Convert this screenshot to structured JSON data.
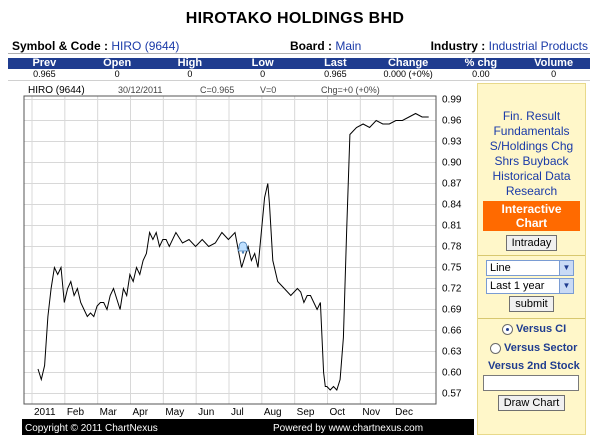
{
  "header": {
    "company_title": "HIROTAKO HOLDINGS BHD",
    "symbol_label": "Symbol & Code :",
    "symbol_value": "HIRO (9644)",
    "board_label": "Board :",
    "board_value": "Main",
    "industry_label": "Industry :",
    "industry_value": "Industrial Products"
  },
  "quote": {
    "columns": [
      "Prev",
      "Open",
      "High",
      "Low",
      "Last",
      "Change",
      "% chg",
      "Volume"
    ],
    "values": [
      "0.965",
      "0",
      "0",
      "0",
      "0.965",
      "0.000 (+0%)",
      "0.00",
      "0"
    ]
  },
  "chart": {
    "info_symbol": "HIRO (9644)",
    "info_date": "30/12/2011",
    "info_close": "C=0.965",
    "info_volume": "V=0",
    "info_change": "Chg=+0 (+0%)",
    "copyright": "Copyright © 2011 ChartNexus",
    "powered_by": "Powered by www.chartnexus.com"
  },
  "chart_data": {
    "type": "line",
    "x_tick_labels": [
      "2011",
      "Feb",
      "Mar",
      "Apr",
      "May",
      "Jun",
      "Jul",
      "Aug",
      "Sep",
      "Oct",
      "Nov",
      "Dec"
    ],
    "y_tick_labels": [
      "0.99",
      "0.96",
      "0.93",
      "0.90",
      "0.87",
      "0.84",
      "0.81",
      "0.78",
      "0.75",
      "0.72",
      "0.69",
      "0.66",
      "0.63",
      "0.60",
      "0.57"
    ],
    "ylim": [
      0.55,
      0.99
    ],
    "series": [
      {
        "month_index": [
          0,
          0.1,
          0.2,
          0.3,
          0.4,
          0.5,
          0.6,
          0.7,
          0.8,
          0.9,
          1.0,
          1.1,
          1.2,
          1.3,
          1.4,
          1.5,
          1.6,
          1.7,
          1.8,
          1.9,
          2.0,
          2.1,
          2.2,
          2.3,
          2.4,
          2.5,
          2.6,
          2.7,
          2.8,
          2.9,
          3.0,
          3.1,
          3.2,
          3.3,
          3.4,
          3.5,
          3.6,
          3.7,
          3.8,
          3.9,
          4.0,
          4.2,
          4.4,
          4.6,
          4.8,
          5.0,
          5.2,
          5.4,
          5.6,
          5.8,
          6.0,
          6.2,
          6.4,
          6.5,
          6.6,
          6.7,
          6.8,
          6.9,
          7.0,
          7.05,
          7.15,
          7.3,
          7.5,
          7.7,
          7.9,
          8.0,
          8.1,
          8.2,
          8.3,
          8.4,
          8.5,
          8.6,
          8.7,
          8.75,
          8.8,
          8.9,
          9.0,
          9.1,
          9.2,
          9.3,
          9.4,
          9.5,
          9.7,
          9.9,
          10.1,
          10.3,
          10.5,
          10.7,
          10.9,
          11.1,
          11.3,
          11.5,
          11.7,
          11.9
        ],
        "values": [
          0.605,
          0.59,
          0.61,
          0.68,
          0.72,
          0.75,
          0.74,
          0.75,
          0.7,
          0.72,
          0.73,
          0.71,
          0.72,
          0.7,
          0.69,
          0.68,
          0.685,
          0.68,
          0.695,
          0.7,
          0.7,
          0.69,
          0.71,
          0.72,
          0.705,
          0.69,
          0.72,
          0.71,
          0.74,
          0.73,
          0.75,
          0.74,
          0.76,
          0.77,
          0.8,
          0.79,
          0.8,
          0.78,
          0.79,
          0.79,
          0.78,
          0.8,
          0.785,
          0.79,
          0.78,
          0.79,
          0.78,
          0.785,
          0.8,
          0.79,
          0.8,
          0.75,
          0.78,
          0.76,
          0.77,
          0.75,
          0.8,
          0.85,
          0.87,
          0.84,
          0.76,
          0.73,
          0.72,
          0.71,
          0.72,
          0.715,
          0.7,
          0.71,
          0.71,
          0.7,
          0.69,
          0.7,
          0.6,
          0.58,
          0.58,
          0.575,
          0.58,
          0.575,
          0.59,
          0.65,
          0.8,
          0.94,
          0.95,
          0.955,
          0.95,
          0.96,
          0.955,
          0.955,
          0.96,
          0.96,
          0.965,
          0.97,
          0.965,
          0.965
        ]
      }
    ],
    "xlabel": "",
    "ylabel": "",
    "grid": true,
    "line_color": "#000000"
  },
  "sidebar": {
    "links": [
      "Fin. Result",
      "Fundamentals",
      "S/Holdings Chg",
      "Shrs Buyback",
      "Historical Data",
      "Research"
    ],
    "active_item": "Interactive Chart",
    "intraday_button": "Intraday",
    "type_select_value": "Line",
    "period_select_value": "Last 1 year",
    "submit_button": "submit",
    "versus_ci_label": "Versus CI",
    "versus_sector_label": "Versus Sector",
    "versus_2nd_label": "Versus 2nd Stock",
    "draw_chart_button": "Draw Chart",
    "accent_color": "#ff6a00"
  }
}
